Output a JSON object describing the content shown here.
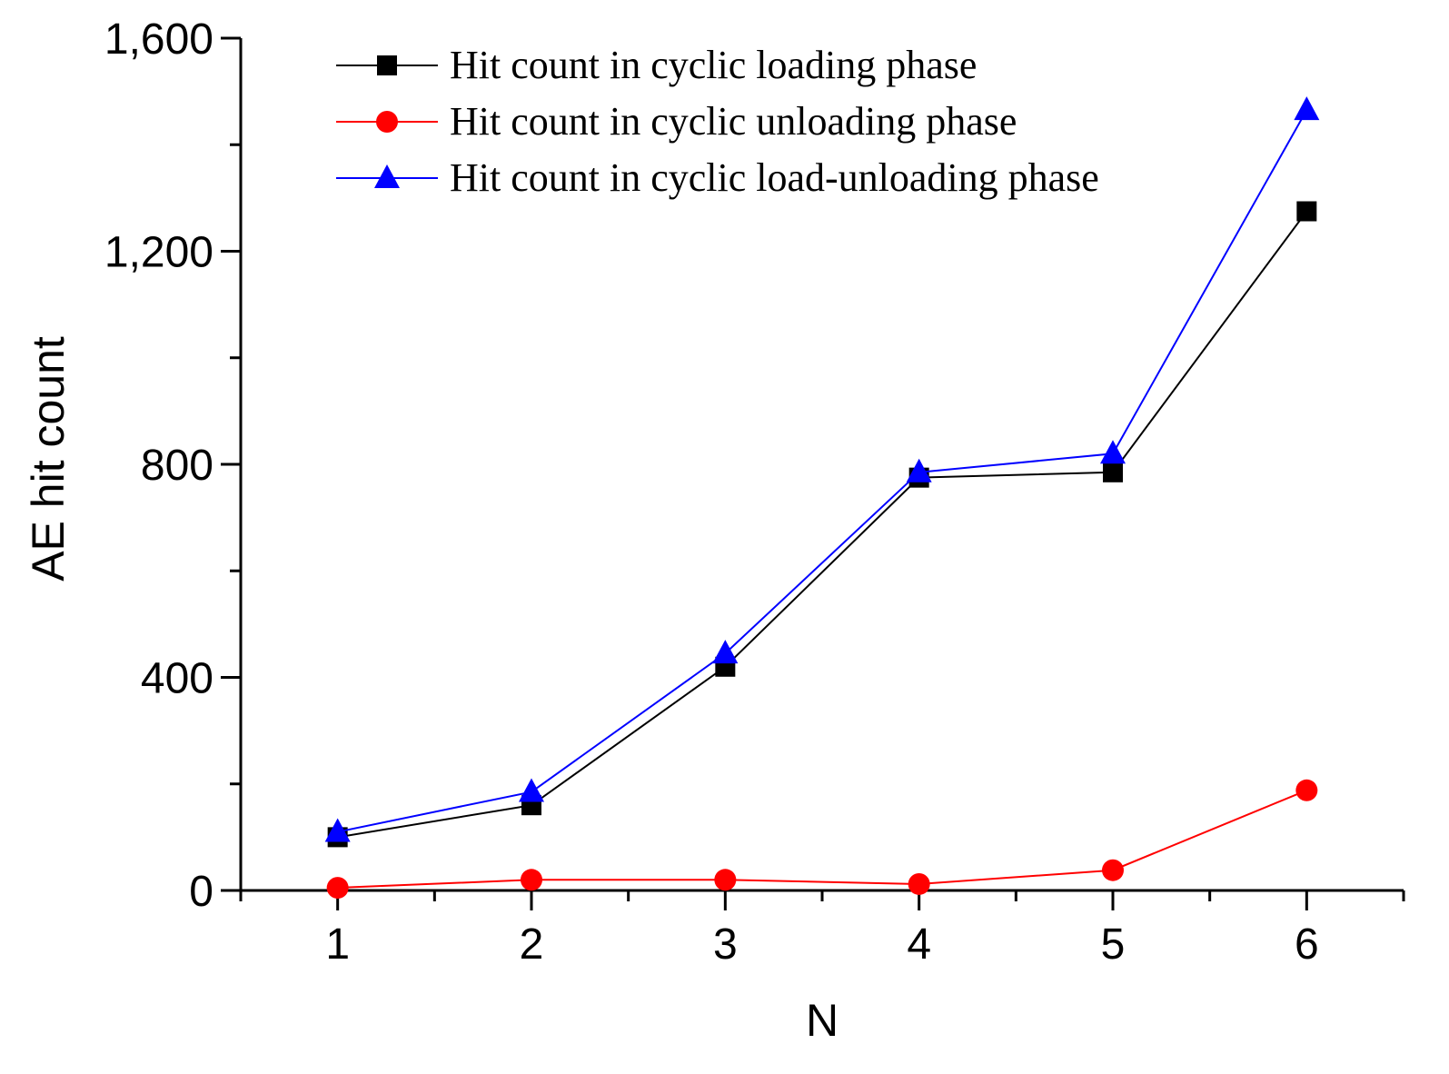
{
  "chart_data": {
    "type": "line",
    "title": "",
    "xlabel": "N",
    "ylabel": "AE hit count",
    "x": [
      1,
      2,
      3,
      4,
      5,
      6
    ],
    "xlim": [
      0.5,
      6.5
    ],
    "ylim": [
      0,
      1600
    ],
    "y_major_ticks": [
      0,
      400,
      800,
      1200,
      1600
    ],
    "y_tick_labels": [
      "0",
      "400",
      "800",
      "1,200",
      "1,600"
    ],
    "x_tick_labels": [
      "1",
      "2",
      "3",
      "4",
      "5",
      "6"
    ],
    "grid": false,
    "legend_position": "top",
    "series": [
      {
        "name": "Hit count in cyclic loading phase",
        "color": "#000000",
        "marker": "square",
        "values": [
          100,
          160,
          420,
          775,
          785,
          1275
        ]
      },
      {
        "name": "Hit count in cyclic unloading phase",
        "color": "#ff0000",
        "marker": "circle",
        "values": [
          5,
          20,
          20,
          12,
          38,
          188
        ]
      },
      {
        "name": "Hit count in cyclic load-unloading phase",
        "color": "#0000ff",
        "marker": "triangle",
        "values": [
          110,
          185,
          445,
          785,
          820,
          1465
        ]
      }
    ]
  }
}
